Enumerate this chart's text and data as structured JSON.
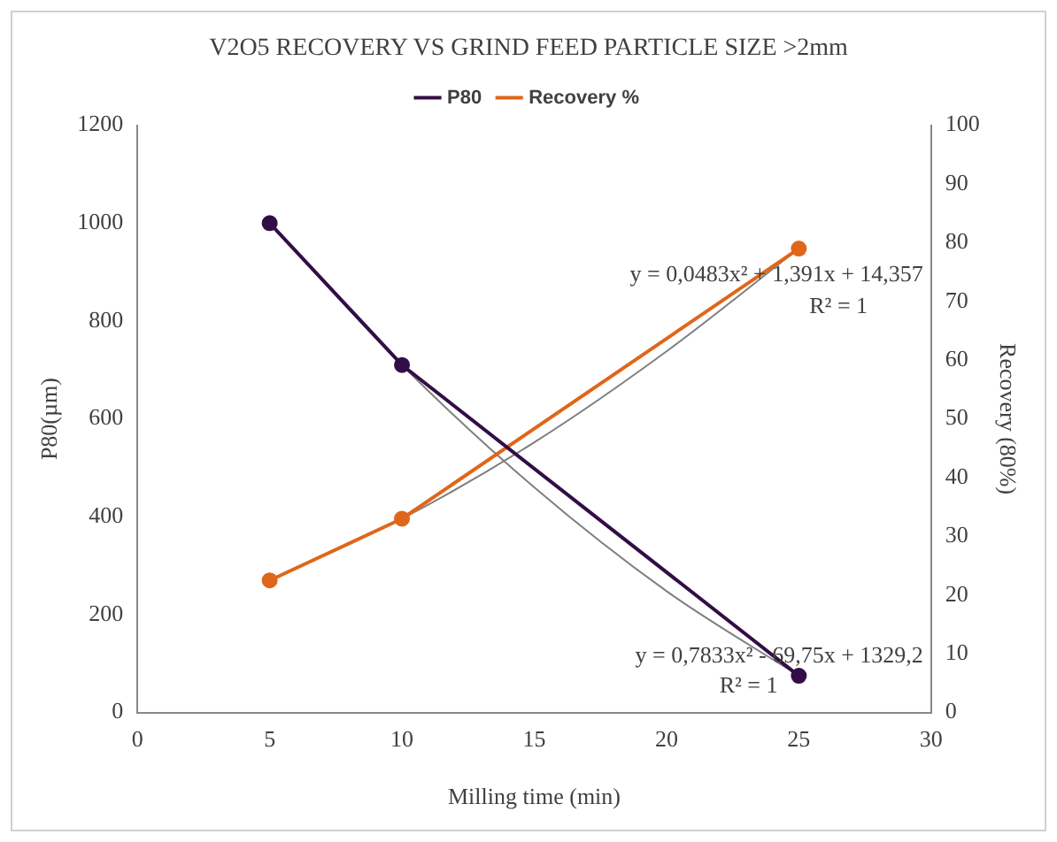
{
  "chart_data": {
    "type": "line",
    "title": "V2O5 RECOVERY VS GRIND FEED PARTICLE SIZE >2mm",
    "xlabel": "Milling time (min)",
    "ylabel": "P80(µm)",
    "y2label": "Recovery (80%)",
    "series": [
      {
        "name": "P80",
        "color": "#330d45",
        "x": [
          5,
          10,
          25
        ],
        "values": [
          1000,
          710,
          75
        ]
      },
      {
        "name": "Recovery %",
        "color": "#e0661a",
        "axis": "y2",
        "x": [
          5,
          10,
          25
        ],
        "values": [
          22.5,
          33,
          79
        ]
      },
      {
        "color": "#7f7f7f",
        "marker": "none",
        "x": [
          5,
          10,
          15,
          20,
          25
        ],
        "values": [
          1000,
          710,
          460,
          248,
          75
        ]
      },
      {
        "color": "#7f7f7f",
        "marker": "none",
        "axis": "y2",
        "x": [
          5,
          10,
          15,
          20,
          25
        ],
        "values": [
          22.5,
          33,
          46,
          61.5,
          79
        ]
      }
    ],
    "xlim": [
      0,
      30
    ],
    "xticks": [
      0,
      5,
      10,
      15,
      20,
      25,
      30
    ],
    "ylim": [
      0,
      1200
    ],
    "yticks": [
      0,
      200,
      400,
      600,
      800,
      1000,
      1200
    ],
    "y2lim": [
      0,
      100
    ],
    "y2ticks": [
      0,
      10,
      20,
      30,
      40,
      50,
      60,
      70,
      80,
      90,
      100
    ],
    "grid": false,
    "legend": "top",
    "marker": "circle",
    "annotations": [
      "y = 0,0483x² + 1,391x + 14,357",
      "R² = 1",
      "y = 0,7833x² - 69,75x + 1329,2",
      "R² = 1"
    ]
  }
}
